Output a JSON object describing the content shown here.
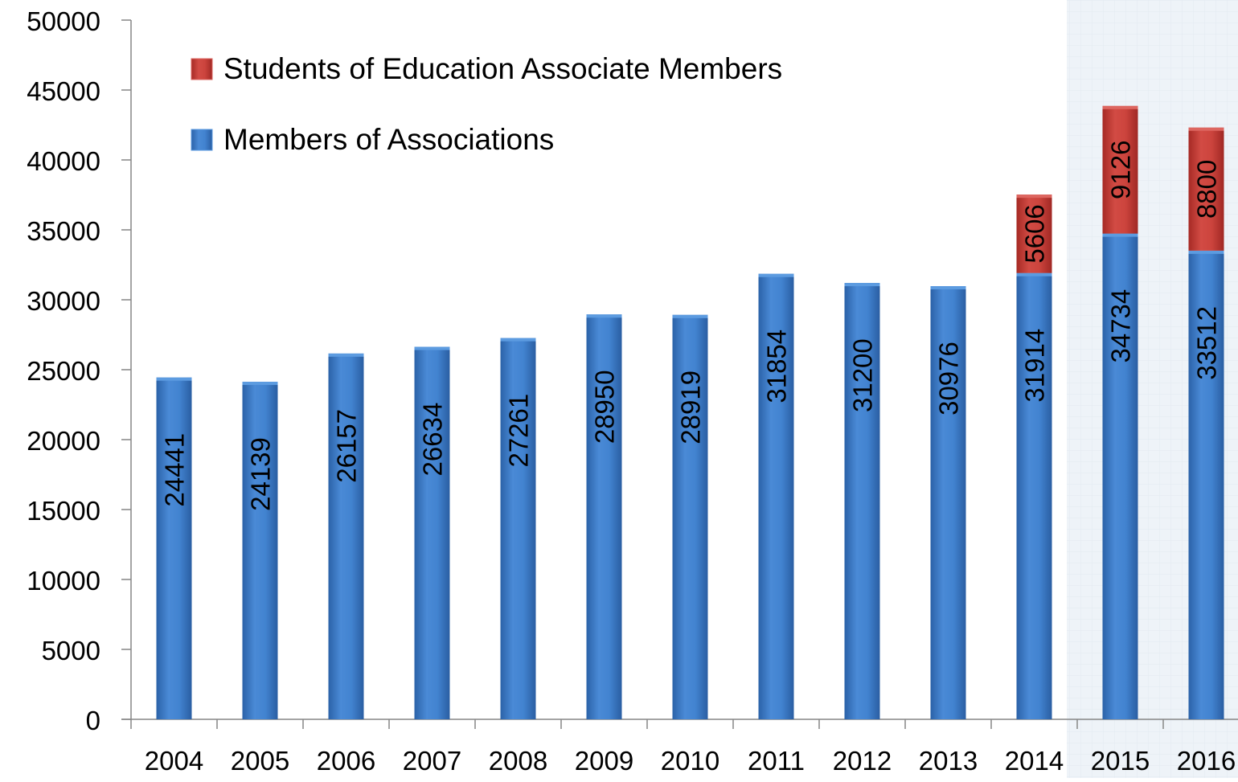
{
  "chart_data": {
    "type": "bar",
    "stacked": true,
    "categories": [
      "2004",
      "2005",
      "2006",
      "2007",
      "2008",
      "2009",
      "2010",
      "2011",
      "2012",
      "2013",
      "2014",
      "2015",
      "2016"
    ],
    "series": [
      {
        "name": "Members of Associations",
        "color": "#3d7cc9",
        "values": [
          24441,
          24139,
          26157,
          26634,
          27261,
          28950,
          28919,
          31854,
          31200,
          30976,
          31914,
          34734,
          33512
        ],
        "labels": [
          "24441",
          "24139",
          "26157",
          "26634",
          "27261",
          "28950",
          "28919",
          "31854",
          "31200",
          "30976",
          "31914",
          "34734",
          "33512"
        ]
      },
      {
        "name": "Students of Education Associate Members",
        "color": "#c9403a",
        "values": [
          0,
          0,
          0,
          0,
          0,
          0,
          0,
          0,
          0,
          0,
          5606,
          9126,
          8800
        ],
        "labels": [
          "",
          "",
          "",
          "",
          "",
          "",
          "",
          "",
          "",
          "",
          "5606",
          "9126",
          "8800"
        ]
      }
    ],
    "ylim": [
      0,
      50000
    ],
    "yticks": [
      0,
      5000,
      10000,
      15000,
      20000,
      25000,
      30000,
      35000,
      40000,
      45000,
      50000
    ],
    "ytick_labels": [
      "0",
      "5000",
      "10000",
      "15000",
      "20000",
      "25000",
      "30000",
      "35000",
      "40000",
      "45000",
      "50000"
    ],
    "grid": false,
    "legend_position": "top-left",
    "highlighted_categories": [
      "2015",
      "2016"
    ],
    "highlight_color": "#eef3f8"
  }
}
